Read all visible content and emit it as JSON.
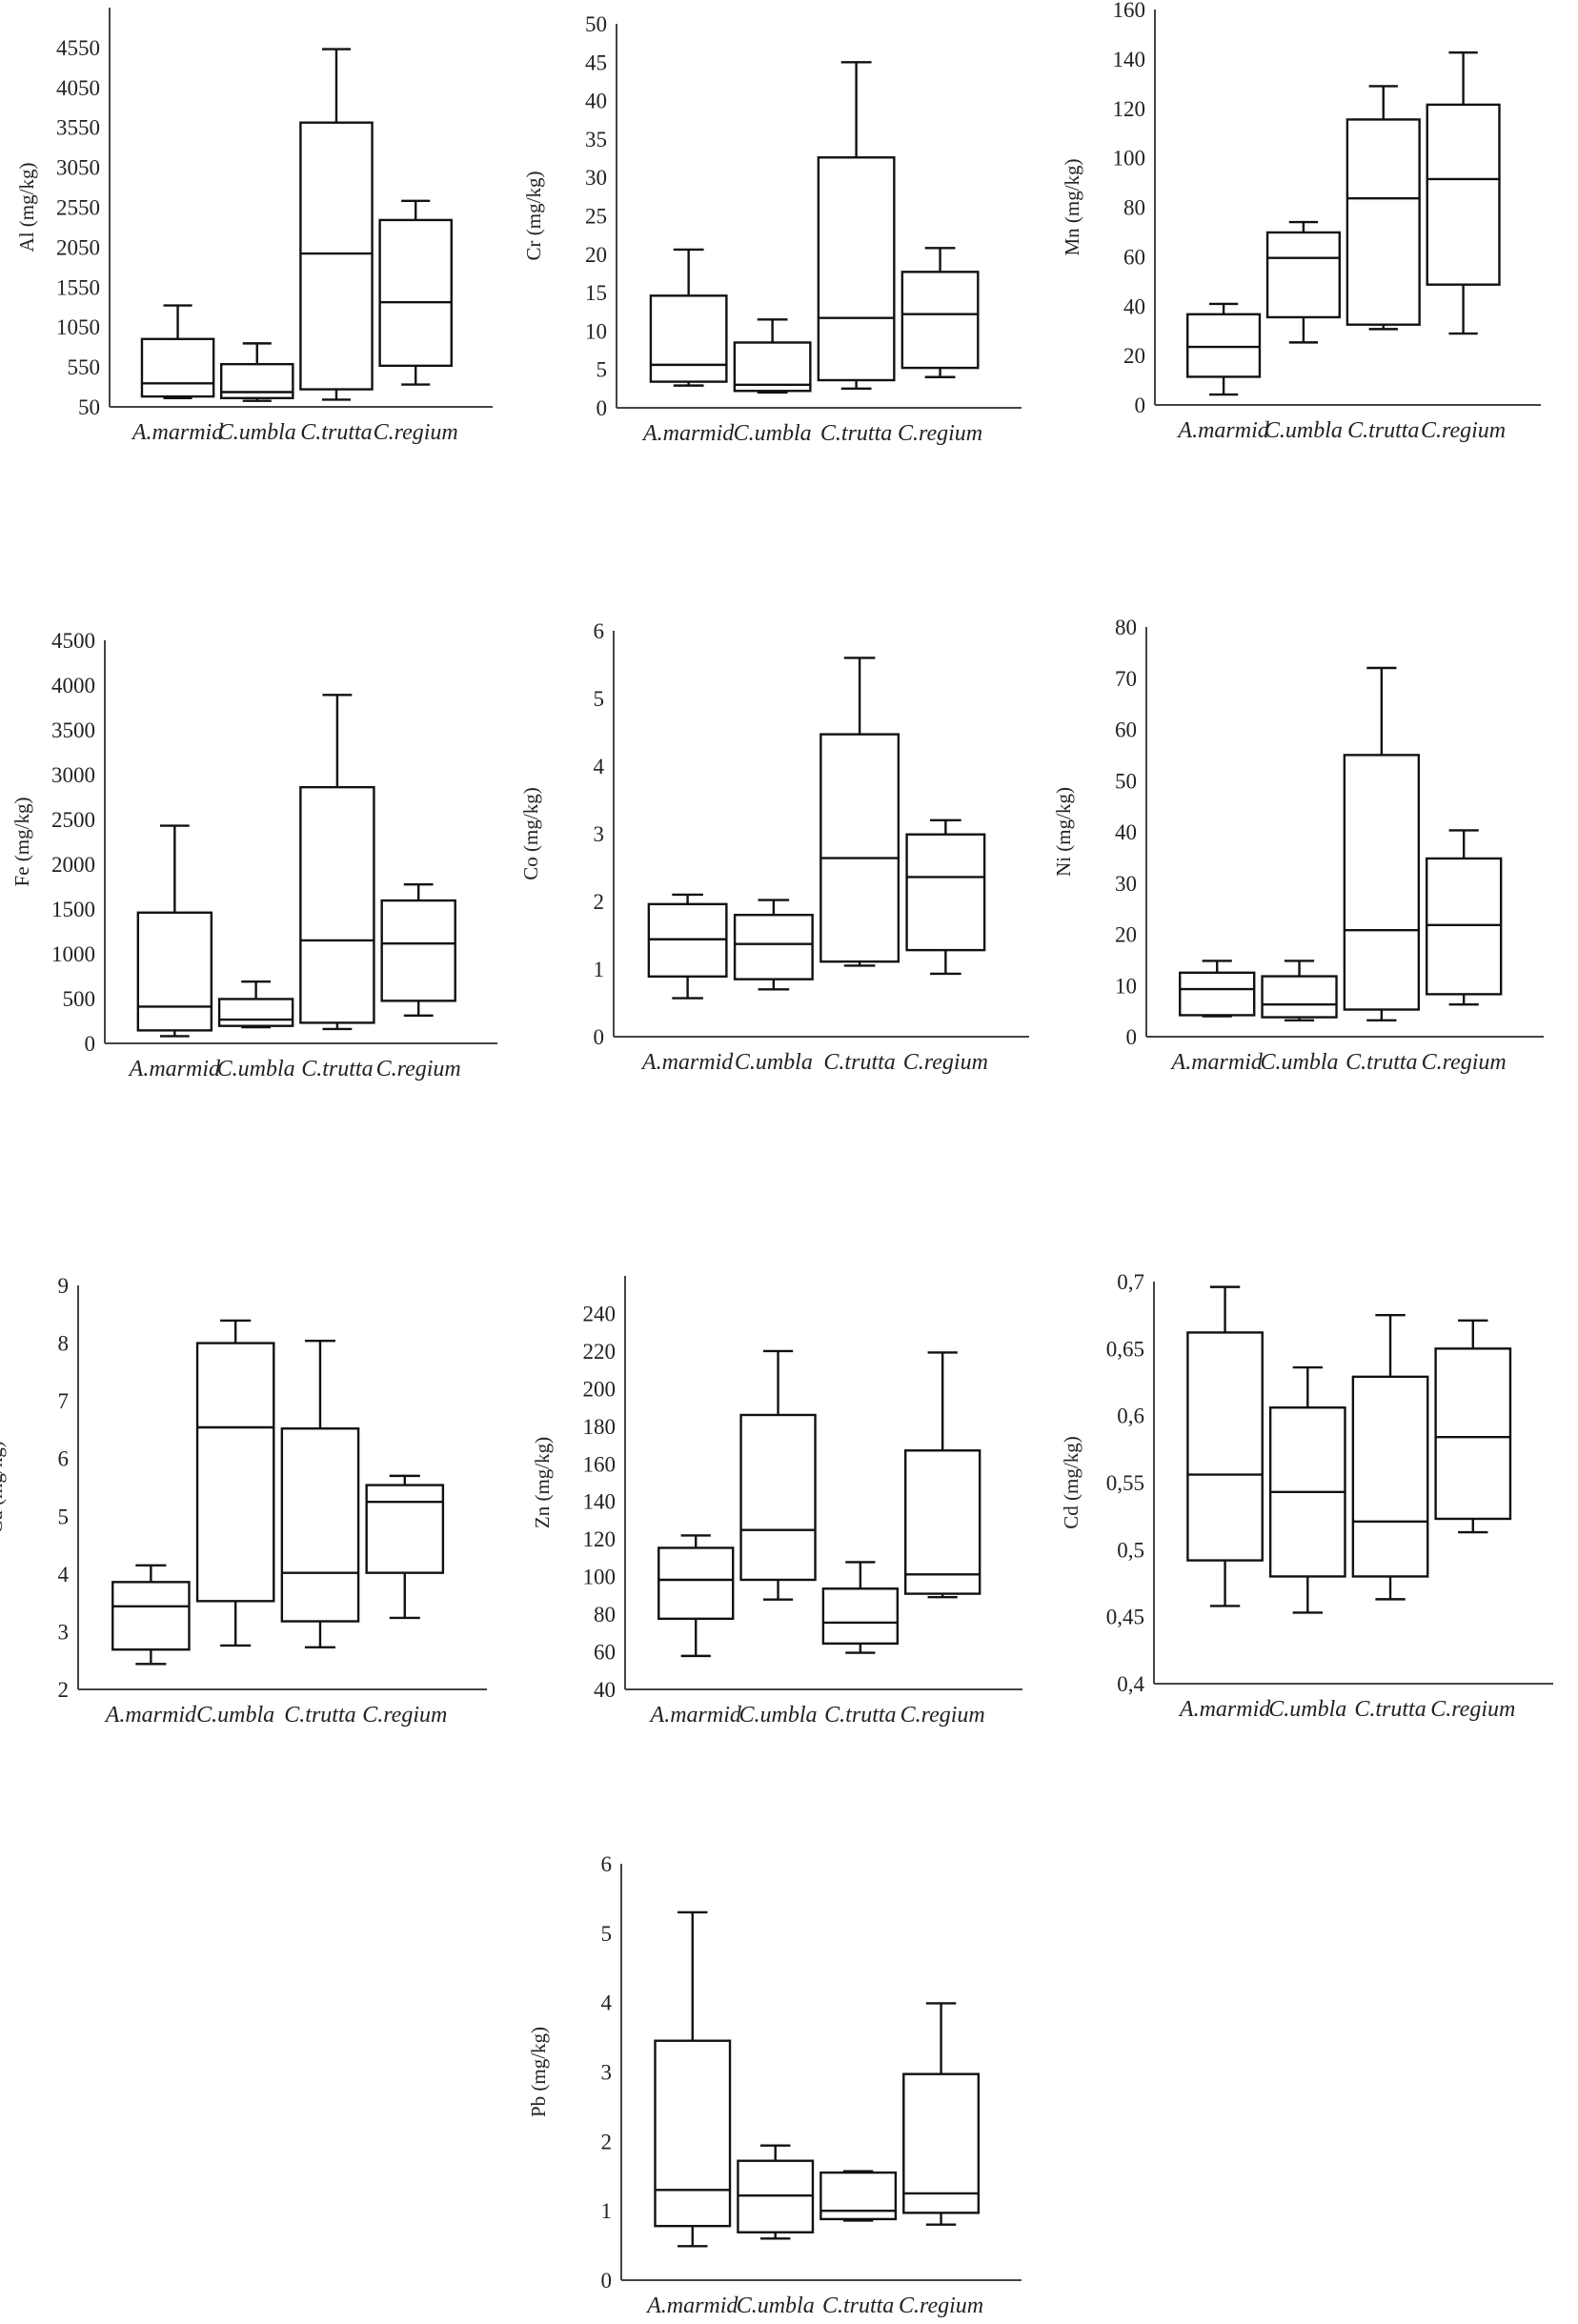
{
  "chart_data": [
    {
      "type": "box",
      "ylabel": "Al (mg/kg)",
      "ylim": [
        50,
        5050
      ],
      "yticks": [
        50,
        550,
        1050,
        1550,
        2050,
        2550,
        3050,
        3550,
        4050,
        4550
      ],
      "ytick_labels": [
        "50",
        "550",
        "1050",
        "1550",
        "2050",
        "2550",
        "3050",
        "3550",
        "4050",
        "4550"
      ],
      "categories": [
        "A.marmid",
        "C.umbla",
        "C.trutta",
        "C.regium"
      ],
      "boxes": [
        {
          "min": 160,
          "q1": 180,
          "median": 345,
          "q3": 900,
          "max": 1320
        },
        {
          "min": 125,
          "q1": 160,
          "median": 235,
          "q3": 585,
          "max": 845
        },
        {
          "min": 140,
          "q1": 270,
          "median": 1970,
          "q3": 3610,
          "max": 4530
        },
        {
          "min": 330,
          "q1": 565,
          "median": 1360,
          "q3": 2390,
          "max": 2630
        }
      ]
    },
    {
      "type": "box",
      "ylabel": "Cr (mg/kg)",
      "ylim": [
        0,
        50
      ],
      "yticks": [
        0,
        5,
        10,
        15,
        20,
        25,
        30,
        35,
        40,
        45,
        50
      ],
      "ytick_labels": [
        "0",
        "5",
        "10",
        "15",
        "20",
        "25",
        "30",
        "35",
        "40",
        "45",
        "50"
      ],
      "categories": [
        "A.marmid",
        "C.umbla",
        "C.trutta",
        "C.regium"
      ],
      "boxes": [
        {
          "min": 2.9,
          "q1": 3.4,
          "median": 5.6,
          "q3": 14.6,
          "max": 20.6
        },
        {
          "min": 2.0,
          "q1": 2.2,
          "median": 3.0,
          "q3": 8.5,
          "max": 11.5
        },
        {
          "min": 2.5,
          "q1": 3.6,
          "median": 11.7,
          "q3": 32.6,
          "max": 45.0
        },
        {
          "min": 4.0,
          "q1": 5.2,
          "median": 12.2,
          "q3": 17.7,
          "max": 20.8
        }
      ]
    },
    {
      "type": "box",
      "ylabel": "Mn (mg/kg)",
      "ylim": [
        0,
        160
      ],
      "yticks": [
        0,
        20,
        40,
        60,
        80,
        100,
        120,
        140,
        160
      ],
      "ytick_labels": [
        "0",
        "20",
        "40",
        "60",
        "80",
        "100",
        "120",
        "140",
        "160"
      ],
      "categories": [
        "A.marmid",
        "C.umbla",
        "C.trutta",
        "C.regium"
      ],
      "boxes": [
        {
          "min": 4.2,
          "q1": 11.4,
          "median": 23.5,
          "q3": 36.7,
          "max": 40.9
        },
        {
          "min": 25.3,
          "q1": 35.5,
          "median": 59.5,
          "q3": 69.8,
          "max": 74.0
        },
        {
          "min": 30.7,
          "q1": 32.5,
          "median": 83.6,
          "q3": 115.5,
          "max": 129.0
        },
        {
          "min": 28.9,
          "q1": 48.7,
          "median": 91.4,
          "q3": 121.5,
          "max": 142.6
        }
      ]
    },
    {
      "type": "box",
      "ylabel": "Fe (mg/kg)",
      "ylim": [
        0,
        4500
      ],
      "yticks": [
        0,
        500,
        1000,
        1500,
        2000,
        2500,
        3000,
        3500,
        4000,
        4500
      ],
      "ytick_labels": [
        "0",
        "500",
        "1000",
        "1500",
        "2000",
        "2500",
        "3000",
        "3500",
        "4000",
        "4500"
      ],
      "categories": [
        "A.marmid",
        "C.umbla",
        "C.trutta",
        "C.regium"
      ],
      "boxes": [
        {
          "min": 80,
          "q1": 145,
          "median": 410,
          "q3": 1460,
          "max": 2430
        },
        {
          "min": 180,
          "q1": 195,
          "median": 265,
          "q3": 495,
          "max": 690
        },
        {
          "min": 160,
          "q1": 230,
          "median": 1150,
          "q3": 2860,
          "max": 3890
        },
        {
          "min": 310,
          "q1": 475,
          "median": 1115,
          "q3": 1595,
          "max": 1775
        }
      ]
    },
    {
      "type": "box",
      "ylabel": "Co (mg/kg)",
      "ylim": [
        0,
        6
      ],
      "yticks": [
        0,
        1,
        2,
        3,
        4,
        5,
        6
      ],
      "ytick_labels": [
        "0",
        "1",
        "2",
        "3",
        "4",
        "5",
        "6"
      ],
      "categories": [
        "A.marmid",
        "C.umbla",
        "C.trutta",
        "C.regium"
      ],
      "boxes": [
        {
          "min": 0.57,
          "q1": 0.89,
          "median": 1.44,
          "q3": 1.96,
          "max": 2.1
        },
        {
          "min": 0.7,
          "q1": 0.85,
          "median": 1.37,
          "q3": 1.8,
          "max": 2.02
        },
        {
          "min": 1.05,
          "q1": 1.11,
          "median": 2.64,
          "q3": 4.47,
          "max": 5.6
        },
        {
          "min": 0.93,
          "q1": 1.28,
          "median": 2.36,
          "q3": 2.99,
          "max": 3.2
        }
      ]
    },
    {
      "type": "box",
      "ylabel": "Ni (mg/kg)",
      "ylim": [
        0,
        80
      ],
      "yticks": [
        0,
        10,
        20,
        30,
        40,
        50,
        60,
        70,
        80
      ],
      "ytick_labels": [
        "0",
        "10",
        "20",
        "30",
        "40",
        "50",
        "60",
        "70",
        "80"
      ],
      "categories": [
        "A.marmid",
        "C.umbla",
        "C.trutta",
        "C.regium"
      ],
      "boxes": [
        {
          "min": 4.0,
          "q1": 4.2,
          "median": 9.3,
          "q3": 12.5,
          "max": 14.8
        },
        {
          "min": 3.2,
          "q1": 3.8,
          "median": 6.3,
          "q3": 11.8,
          "max": 14.8
        },
        {
          "min": 3.2,
          "q1": 5.3,
          "median": 20.8,
          "q3": 55.0,
          "max": 72.0
        },
        {
          "min": 6.3,
          "q1": 8.3,
          "median": 21.8,
          "q3": 34.8,
          "max": 40.3
        }
      ]
    },
    {
      "type": "box",
      "ylabel": "Cu (mg/kg)",
      "ylim": [
        2,
        9
      ],
      "yticks": [
        2,
        3,
        4,
        5,
        6,
        7,
        8,
        9
      ],
      "ytick_labels": [
        "2",
        "3",
        "4",
        "5",
        "6",
        "7",
        "8",
        "9"
      ],
      "categories": [
        "A.marmid",
        "C.umbla",
        "C.trutta",
        "C.regium"
      ],
      "boxes": [
        {
          "min": 2.44,
          "q1": 2.69,
          "median": 3.44,
          "q3": 3.86,
          "max": 4.15
        },
        {
          "min": 2.76,
          "q1": 3.53,
          "median": 6.54,
          "q3": 8.0,
          "max": 8.39
        },
        {
          "min": 2.73,
          "q1": 3.18,
          "median": 4.02,
          "q3": 6.52,
          "max": 8.04
        },
        {
          "min": 3.24,
          "q1": 4.02,
          "median": 5.25,
          "q3": 5.54,
          "max": 5.7
        }
      ]
    },
    {
      "type": "box",
      "ylabel": "Zn (mg/kg)",
      "ylim": [
        40,
        260
      ],
      "yticks": [
        40,
        60,
        80,
        100,
        120,
        140,
        160,
        180,
        200,
        220,
        240
      ],
      "ytick_labels": [
        "40",
        "60",
        "80",
        "100",
        "120",
        "140",
        "160",
        "180",
        "200",
        "220",
        "240"
      ],
      "categories": [
        "A.marmid",
        "C.umbla",
        "C.trutta",
        "C.regium"
      ],
      "boxes": [
        {
          "min": 57.8,
          "q1": 77.6,
          "median": 98.3,
          "q3": 115.3,
          "max": 121.9
        },
        {
          "min": 87.8,
          "q1": 98.3,
          "median": 124.8,
          "q3": 186.0,
          "max": 220.0
        },
        {
          "min": 59.5,
          "q1": 64.4,
          "median": 75.5,
          "q3": 93.6,
          "max": 107.7
        },
        {
          "min": 89.1,
          "q1": 90.9,
          "median": 101.2,
          "q3": 167.1,
          "max": 219.2
        }
      ]
    },
    {
      "type": "box",
      "ylabel": "Cd (mg/kg)",
      "ylim": [
        0.4,
        0.7
      ],
      "yticks": [
        0.4,
        0.45,
        0.5,
        0.55,
        0.6,
        0.65,
        0.7
      ],
      "ytick_labels": [
        "0,4",
        "0,45",
        "0,5",
        "0,55",
        "0,6",
        "0,65",
        "0,7"
      ],
      "categories": [
        "A.marmid",
        "C.umbla",
        "C.trutta",
        "C.regium"
      ],
      "boxes": [
        {
          "min": 0.458,
          "q1": 0.492,
          "median": 0.556,
          "q3": 0.662,
          "max": 0.696
        },
        {
          "min": 0.453,
          "q1": 0.48,
          "median": 0.543,
          "q3": 0.606,
          "max": 0.636
        },
        {
          "min": 0.463,
          "q1": 0.48,
          "median": 0.521,
          "q3": 0.629,
          "max": 0.675
        },
        {
          "min": 0.513,
          "q1": 0.523,
          "median": 0.584,
          "q3": 0.65,
          "max": 0.671
        }
      ]
    },
    {
      "type": "box",
      "ylabel": "Pb (mg/kg)",
      "ylim": [
        0,
        6
      ],
      "yticks": [
        0,
        1,
        2,
        3,
        4,
        5,
        6
      ],
      "ytick_labels": [
        "0",
        "1",
        "2",
        "3",
        "4",
        "5",
        "6"
      ],
      "categories": [
        "A.marmid",
        "C.umbla",
        "C.trutta",
        "C.regium"
      ],
      "boxes": [
        {
          "min": 0.49,
          "q1": 0.78,
          "median": 1.3,
          "q3": 3.45,
          "max": 5.3
        },
        {
          "min": 0.6,
          "q1": 0.69,
          "median": 1.22,
          "q3": 1.72,
          "max": 1.94
        },
        {
          "min": 0.86,
          "q1": 0.88,
          "median": 1.0,
          "q3": 1.55,
          "max": 1.57
        },
        {
          "min": 0.8,
          "q1": 0.97,
          "median": 1.25,
          "q3": 2.97,
          "max": 3.99
        }
      ]
    }
  ]
}
